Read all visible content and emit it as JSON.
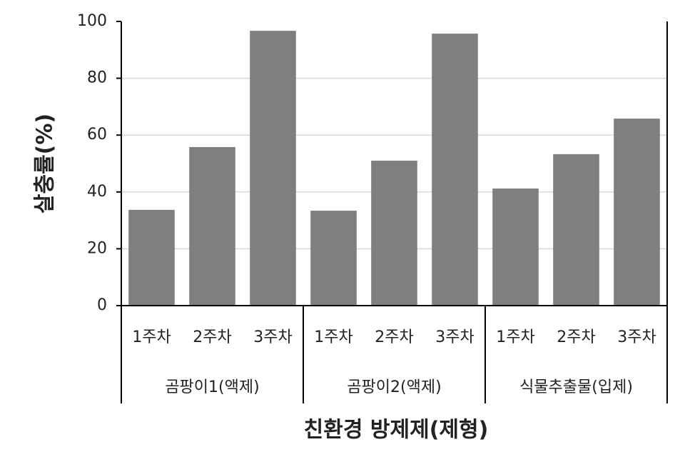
{
  "chart_data": {
    "type": "bar",
    "categories": [
      "1주차",
      "2주차",
      "3주차",
      "1주차",
      "2주차",
      "3주차",
      "1주차",
      "2주차",
      "3주차"
    ],
    "category_groups": [
      "곰팡이1(액제)",
      "곰팡이2(액제)",
      "식물추출물(입제)"
    ],
    "values": [
      33.7,
      55.8,
      96.7,
      33.4,
      51,
      95.7,
      41.2,
      53.3,
      65.8
    ],
    "color": "#7f7f7f",
    "ylim": [
      0,
      100
    ],
    "yticks": [
      0,
      20,
      40,
      60,
      80,
      100
    ],
    "grid": true,
    "y_label": "살충률(%)",
    "x_label": "친환경 방제제(제형)"
  }
}
